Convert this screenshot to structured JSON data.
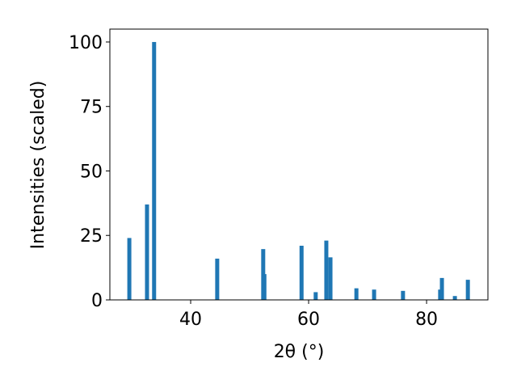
{
  "chart_data": {
    "type": "bar",
    "xlabel": "2θ (°)",
    "ylabel": "Intensities (scaled)",
    "x": [
      29.6,
      32.6,
      33.8,
      44.5,
      52.3,
      52.5,
      58.8,
      61.2,
      63.0,
      63.7,
      68.1,
      71.1,
      76.0,
      82.3,
      82.6,
      84.8,
      87.0
    ],
    "values": [
      24,
      37,
      100,
      16,
      19.7,
      10,
      21,
      3,
      23,
      16.5,
      4.5,
      4,
      3.5,
      4,
      8.5,
      1.5,
      7.8
    ],
    "color": "#1f77b4",
    "xlim": [
      26.3,
      90.4
    ],
    "xticks": [
      40,
      60,
      80
    ],
    "ylim": [
      0,
      105
    ],
    "yticks": [
      0,
      25,
      50,
      75,
      100
    ],
    "grid": false
  }
}
